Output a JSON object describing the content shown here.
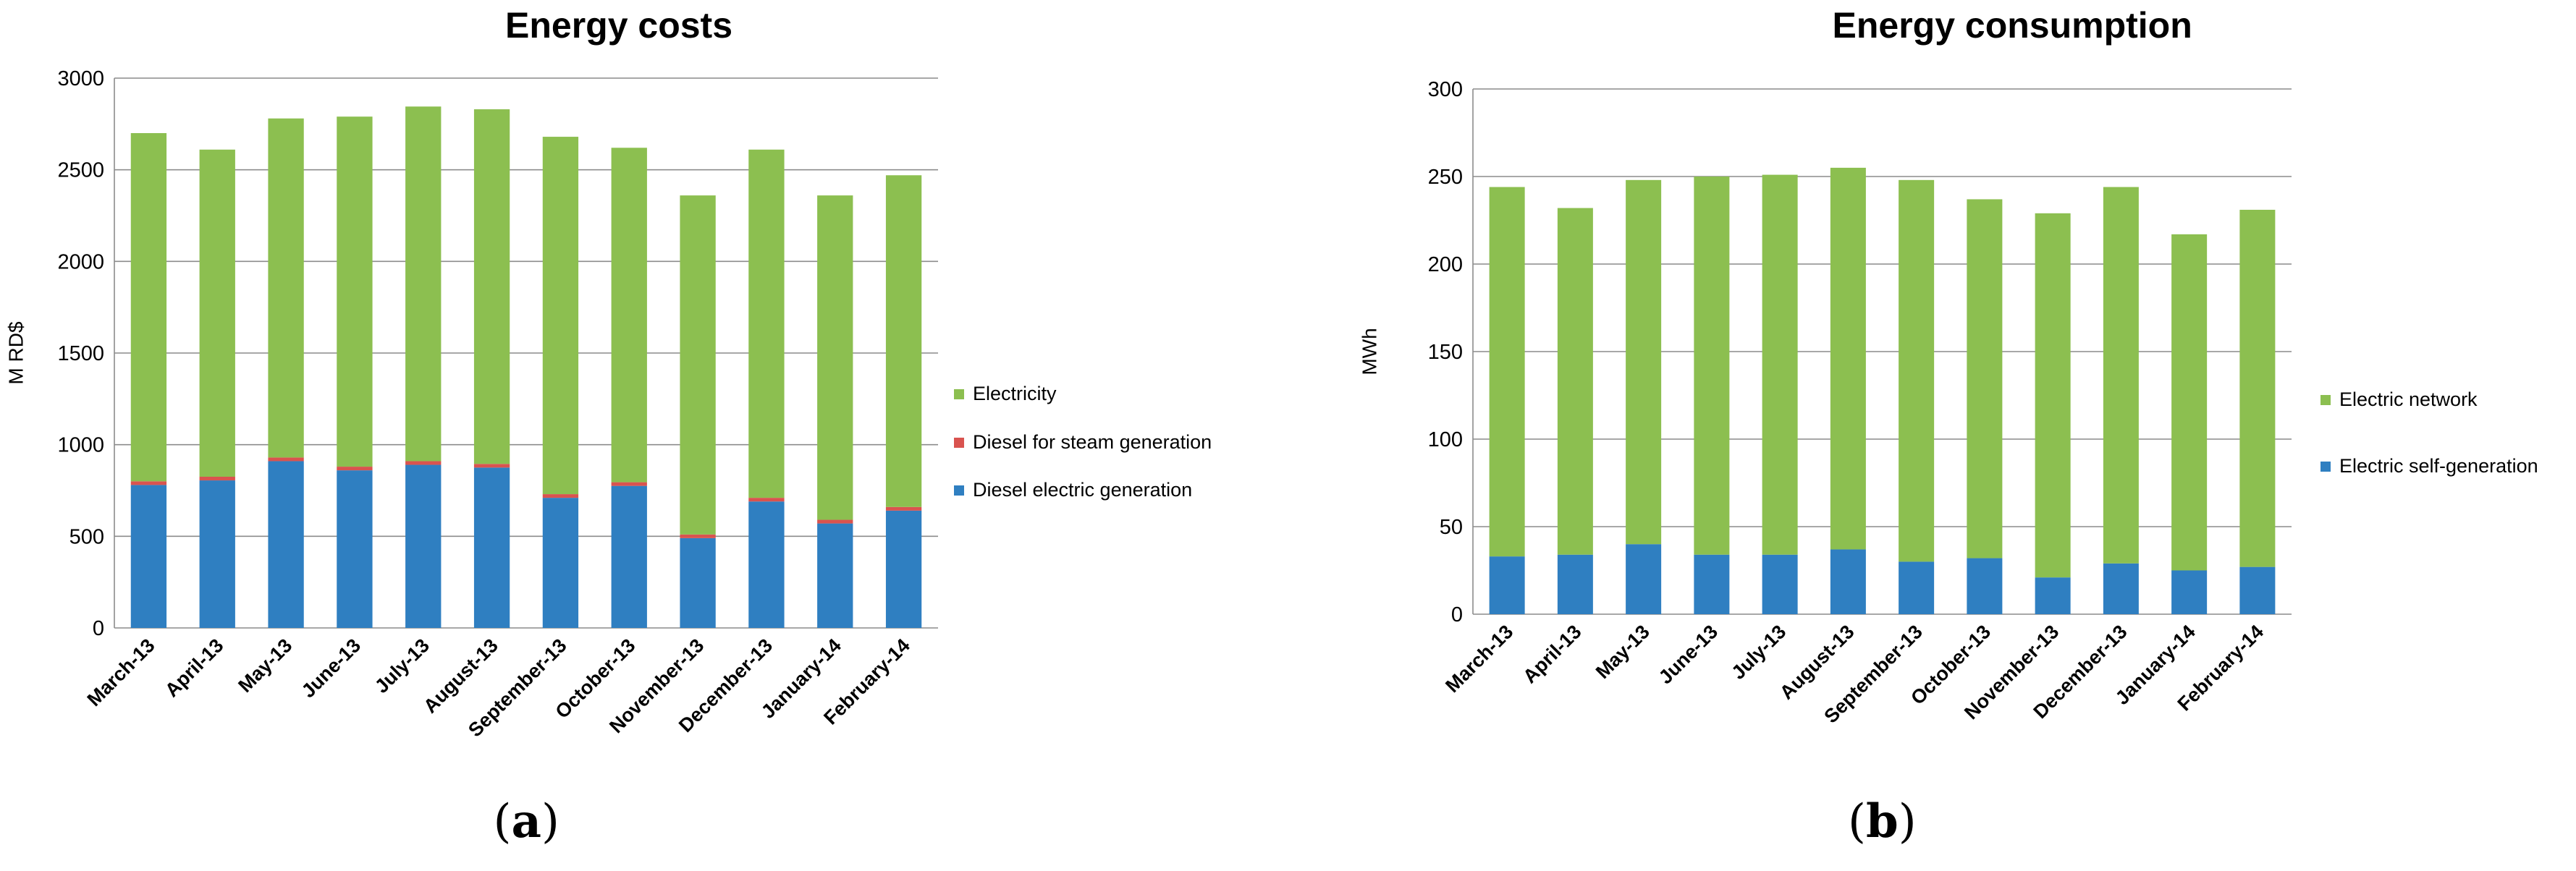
{
  "chart_data": [
    {
      "type": "bar",
      "stacked": true,
      "panel_label": "a",
      "title": "Energy costs",
      "xlabel": "",
      "ylabel": "M RD$",
      "ylim": [
        0,
        3000
      ],
      "yticks": [
        0,
        500,
        1000,
        1500,
        2000,
        2500,
        3000
      ],
      "grid": true,
      "legend_position": "right",
      "categories": [
        "March-13",
        "April-13",
        "May-13",
        "June-13",
        "July-13",
        "August-13",
        "September-13",
        "October-13",
        "November-13",
        "December-13",
        "January-14",
        "February-14"
      ],
      "series": [
        {
          "name": "Diesel electric generation",
          "color": "#2f7fc1",
          "values": [
            780,
            805,
            910,
            860,
            890,
            875,
            710,
            775,
            490,
            690,
            570,
            640
          ]
        },
        {
          "name": "Diesel for steam generation",
          "color": "#d9534f",
          "values": [
            20,
            20,
            20,
            20,
            20,
            20,
            20,
            20,
            20,
            20,
            20,
            20
          ]
        },
        {
          "name": "Electricity",
          "color": "#8cbf50",
          "values": [
            1900,
            1785,
            1850,
            1910,
            1935,
            1935,
            1950,
            1825,
            1850,
            1900,
            1770,
            1810
          ]
        }
      ],
      "legend_order": [
        "Electricity",
        "Diesel for steam generation",
        "Diesel electric generation"
      ]
    },
    {
      "type": "bar",
      "stacked": true,
      "panel_label": "b",
      "title": "Energy consumption",
      "xlabel": "",
      "ylabel": "MWh",
      "ylim": [
        0,
        300
      ],
      "yticks": [
        0,
        50,
        100,
        150,
        200,
        250,
        300
      ],
      "grid": true,
      "legend_position": "right",
      "categories": [
        "March-13",
        "April-13",
        "May-13",
        "June-13",
        "July-13",
        "August-13",
        "September-13",
        "October-13",
        "November-13",
        "December-13",
        "January-14",
        "February-14"
      ],
      "series": [
        {
          "name": "Electric self-generation",
          "color": "#2f7fc1",
          "values": [
            33,
            34,
            40,
            34,
            34,
            37,
            30,
            32,
            21,
            29,
            25,
            27
          ]
        },
        {
          "name": "Electric network",
          "color": "#8cbf50",
          "values": [
            211,
            198,
            208,
            216,
            217,
            218,
            218,
            205,
            208,
            215,
            192,
            204
          ]
        }
      ],
      "legend_order": [
        "Electric network",
        "Electric self-generation"
      ]
    }
  ]
}
